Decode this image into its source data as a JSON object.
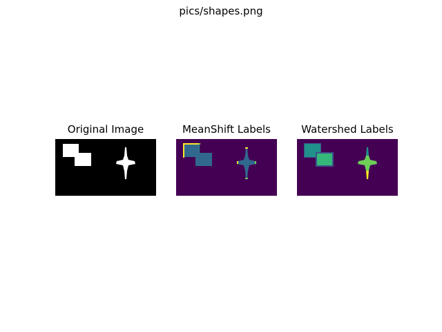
{
  "figure": {
    "suptitle": "pics/shapes.png"
  },
  "panels": [
    {
      "title": "Original Image"
    },
    {
      "title": "MeanShift Labels"
    },
    {
      "title": "Watershed Labels"
    }
  ],
  "colors": {
    "black": "#000000",
    "white": "#ffffff",
    "viridis_dark": "#440154",
    "viridis_blue": "#31688e",
    "viridis_teal": "#21918c",
    "viridis_green": "#35b779",
    "viridis_lime": "#6ece58",
    "viridis_yellow": "#fde725",
    "viridis_navy": "#3b528b"
  }
}
